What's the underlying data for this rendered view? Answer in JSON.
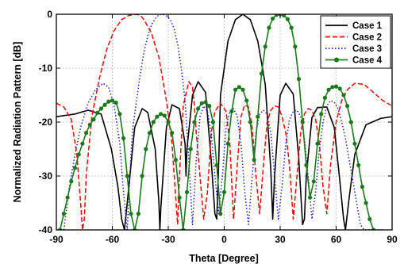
{
  "chart_data": {
    "type": "line",
    "xlabel": "Theta [Degree]",
    "ylabel": "Normalized Radiation Pattern [dB]",
    "xlim": [
      -90,
      90
    ],
    "ylim": [
      -40,
      0
    ],
    "xticks": [
      -90,
      -60,
      -30,
      0,
      30,
      60,
      90
    ],
    "yticks": [
      0,
      -10,
      -20,
      -30,
      -40
    ],
    "xtick_labels": [
      "-90",
      "-60",
      "-30",
      "0",
      "30",
      "60",
      "90"
    ],
    "ytick_labels": [
      "0",
      "-10",
      "-20",
      "-30",
      "-40"
    ],
    "grid": true,
    "legend_position": "top-right",
    "series": [
      {
        "name": "Case 1",
        "color": "#000000",
        "dash": "solid",
        "marker": "none",
        "x": [
          -90,
          -80,
          -73,
          -66,
          -60.5,
          -57,
          -55,
          -53.5,
          -52,
          -48,
          -44,
          -41,
          -37,
          -35,
          -34.5,
          -34,
          -31,
          -28,
          -24,
          -21,
          -20.5,
          -20,
          -17,
          -14,
          -10,
          -7,
          -5,
          -4,
          -3,
          -2,
          2,
          6,
          10,
          14,
          18,
          22,
          25,
          26,
          27,
          30,
          33,
          37,
          40,
          42,
          43,
          44,
          47,
          50,
          55,
          59,
          62,
          64,
          65,
          67,
          70,
          76,
          84,
          90
        ],
        "y": [
          -19,
          -18.5,
          -17.8,
          -18.5,
          -25,
          -32,
          -38,
          -40,
          -35,
          -21,
          -17.5,
          -18.2,
          -25,
          -35,
          -40,
          -36,
          -21,
          -16.8,
          -17.5,
          -24,
          -30,
          -25,
          -15,
          -12.5,
          -14.5,
          -27,
          -37,
          -38,
          -28,
          -15,
          -5,
          -1,
          0,
          -1,
          -5,
          -13,
          -29,
          -38,
          -30,
          -15,
          -12.8,
          -14.8,
          -27,
          -39,
          -38,
          -30,
          -19.2,
          -17.3,
          -17.2,
          -21,
          -31,
          -38,
          -40,
          -34,
          -26,
          -20.5,
          -19.3,
          -19
        ]
      },
      {
        "name": "Case 2",
        "color": "#ff0000",
        "dash": "dash",
        "marker": "none",
        "x": [
          -90,
          -86,
          -82,
          -79,
          -77,
          -76,
          -75,
          -74,
          -71,
          -67,
          -63,
          -59,
          -55,
          -51,
          -47,
          -45,
          -43,
          -39,
          -35,
          -31,
          -28,
          -26,
          -25,
          -24,
          -22,
          -19,
          -17,
          -16,
          -15,
          -13,
          -11,
          -9,
          -7,
          -5,
          -2,
          1,
          3,
          5,
          7,
          9,
          11,
          13,
          15,
          17,
          19,
          21,
          23,
          25,
          27,
          29,
          31,
          33,
          35,
          37,
          39,
          41,
          43,
          45,
          47,
          49,
          51,
          53,
          55,
          57,
          60,
          63,
          66,
          70,
          75,
          80,
          85,
          90
        ],
        "y": [
          -16.5,
          -17.2,
          -19.5,
          -26,
          -35,
          -40,
          -38,
          -30,
          -19,
          -12,
          -6.5,
          -3,
          -1,
          -0.2,
          0,
          -0.2,
          -1,
          -3.5,
          -8,
          -16,
          -24,
          -34,
          -39,
          -30,
          -17,
          -12.5,
          -13.5,
          -17,
          -22,
          -30,
          -38,
          -33,
          -22,
          -18,
          -16.5,
          -18,
          -24,
          -38,
          -28,
          -19,
          -16.8,
          -17.2,
          -21,
          -30,
          -37,
          -28,
          -20,
          -17.8,
          -17,
          -17.2,
          -19,
          -22,
          -28,
          -38,
          -30,
          -22,
          -18.5,
          -17.5,
          -17.8,
          -19.5,
          -24,
          -32,
          -37,
          -28,
          -20,
          -16,
          -14,
          -12.8,
          -13,
          -14.5,
          -16,
          -17
        ]
      },
      {
        "name": "Case 3",
        "color": "#1f1fcc",
        "dash": "dot",
        "marker": "none",
        "x": [
          -86,
          -83,
          -80,
          -77,
          -73,
          -69,
          -65,
          -62,
          -59,
          -56,
          -54,
          -52,
          -51,
          -50,
          -49,
          -47,
          -45,
          -43,
          -41,
          -39,
          -37,
          -35,
          -33,
          -31,
          -29,
          -27,
          -25,
          -23,
          -21,
          -19,
          -17,
          -15,
          -13,
          -11,
          -9,
          -7,
          -5,
          -3,
          -1,
          1,
          3,
          5,
          7,
          9,
          11,
          13,
          15,
          17,
          19,
          21,
          23,
          25,
          27,
          29,
          31,
          33,
          35,
          37,
          39,
          41,
          43,
          45,
          47,
          49,
          51,
          53,
          55,
          57,
          59,
          61,
          63,
          65,
          67,
          69,
          71,
          73,
          75,
          77,
          79,
          81,
          83,
          85
        ],
        "y": [
          -40,
          -32,
          -26,
          -21,
          -16.5,
          -14,
          -12.8,
          -13.5,
          -17,
          -24,
          -33,
          -40,
          -33,
          -26,
          -21,
          -16,
          -11,
          -7,
          -4,
          -2,
          -0.8,
          -0.1,
          0,
          -0.3,
          -1,
          -2.5,
          -5.5,
          -10,
          -16,
          -27,
          -39,
          -27,
          -19,
          -17,
          -18,
          -22,
          -30,
          -37,
          -30,
          -21,
          -18,
          -17.5,
          -19,
          -24,
          -33,
          -39,
          -30,
          -22,
          -18.5,
          -17.8,
          -18.5,
          -22,
          -30,
          -38,
          -32,
          -24,
          -19.5,
          -18,
          -17.8,
          -19,
          -23,
          -30,
          -38,
          -33,
          -25,
          -20,
          -17,
          -16,
          -16.3,
          -17.5,
          -20,
          -23,
          -27,
          -31,
          -35,
          -39,
          -40,
          -40,
          -40,
          -40,
          -40,
          -40
        ]
      },
      {
        "name": "Case 4",
        "color": "#1a7a1a",
        "dash": "solid",
        "marker": "circle",
        "x": [
          -88,
          -86,
          -84,
          -82,
          -80,
          -78,
          -76,
          -74,
          -72,
          -70,
          -68,
          -66,
          -64,
          -62,
          -60,
          -58,
          -56,
          -54,
          -52,
          -50,
          -48,
          -46,
          -44,
          -42,
          -40,
          -38,
          -36,
          -34,
          -32,
          -30,
          -28,
          -26,
          -24,
          -22,
          -20,
          -18,
          -16,
          -14,
          -12,
          -10,
          -8,
          -6,
          -4,
          -2,
          0,
          2,
          4,
          6,
          8,
          10,
          12,
          14,
          16,
          18,
          20,
          22,
          24,
          26,
          28,
          30,
          32,
          34,
          36,
          38,
          40,
          42,
          44,
          46,
          48,
          50,
          52,
          54,
          56,
          58,
          60,
          62,
          64,
          66,
          68,
          70,
          72,
          74,
          76,
          78,
          80
        ],
        "y": [
          -40,
          -37,
          -34,
          -31,
          -28.5,
          -26,
          -24,
          -22,
          -20.5,
          -19.5,
          -18.3,
          -17.5,
          -16.8,
          -16.2,
          -16,
          -16.4,
          -18.5,
          -23,
          -30,
          -37,
          -40,
          -37,
          -30,
          -25,
          -22,
          -20,
          -19,
          -18.5,
          -18.8,
          -20,
          -22,
          -27,
          -34,
          -40,
          -33,
          -25,
          -20,
          -17.5,
          -16.5,
          -16.3,
          -17,
          -20,
          -28,
          -37,
          -33,
          -24,
          -18,
          -14,
          -13.5,
          -14,
          -16,
          -20,
          -27,
          -19,
          -11,
          -6,
          -2.5,
          -0.8,
          -0.1,
          0,
          -0.2,
          -0.9,
          -2.5,
          -6,
          -12,
          -20,
          -28,
          -34,
          -31,
          -24,
          -18.5,
          -15.5,
          -14,
          -13.5,
          -13.4,
          -13.8,
          -15,
          -17,
          -20,
          -24,
          -28,
          -32,
          -35,
          -38,
          -40
        ]
      }
    ]
  }
}
